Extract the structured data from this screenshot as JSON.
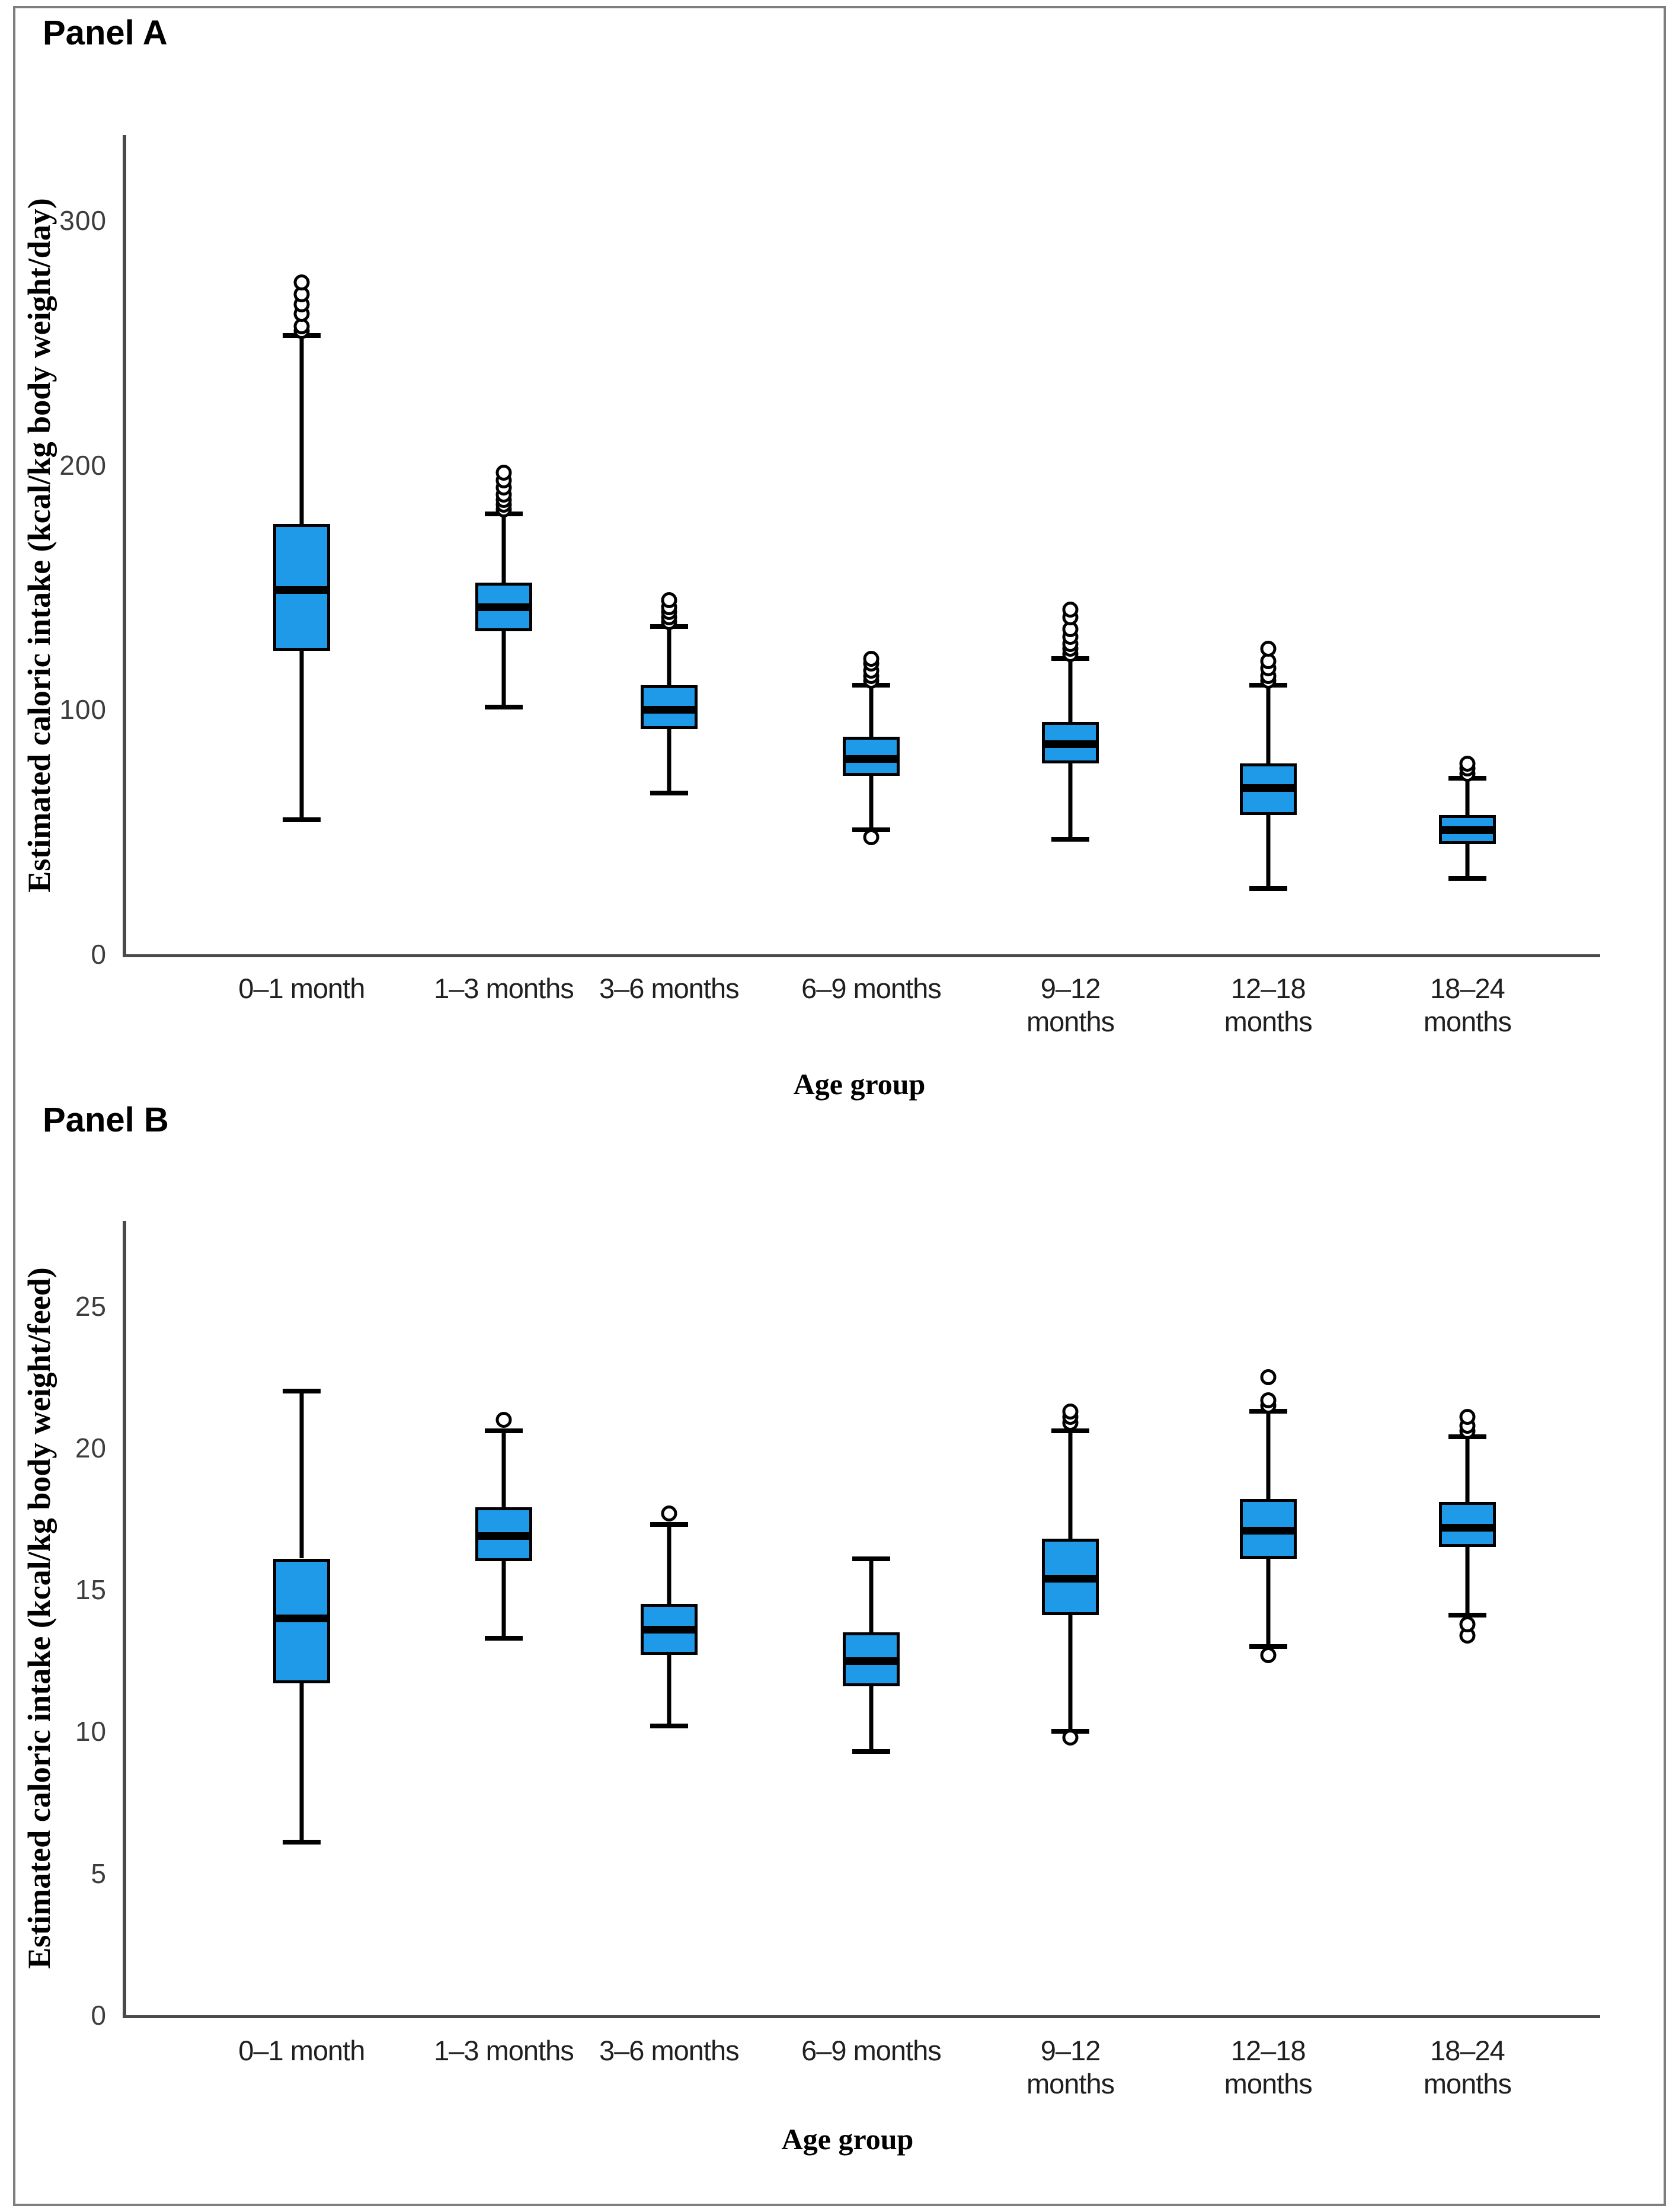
{
  "figure": {
    "panel_a_label": "Panel A",
    "panel_b_label": "Panel B",
    "border_color": "#7e7e7e",
    "box_fill_color": "#1e9ae8",
    "box_line_color": "#000000",
    "axis_color": "#4a4a4a"
  },
  "chart_data": [
    {
      "type": "boxplot",
      "panel": "Panel A",
      "xlabel": "Age group",
      "ylabel": "Estimated caloric intake (kcal/kg body weight/day)",
      "ylim": [
        0,
        335
      ],
      "yticks": [
        0,
        100,
        200,
        300
      ],
      "grid": false,
      "categories": [
        "0–1 month",
        "1–3 months",
        "3–6 months",
        "6–9 months",
        "9–12\nmonths",
        "12–18\nmonths",
        "18–24\nmonths"
      ],
      "series": [
        {
          "category": "0–1 month",
          "whisker_low": 55,
          "q1": 124,
          "median": 149,
          "q3": 176,
          "whisker_high": 253,
          "outliers_low": [],
          "outliers_high": [
            255,
            257,
            262,
            266,
            270,
            275
          ]
        },
        {
          "category": "1–3 months",
          "whisker_low": 101,
          "q1": 132,
          "median": 142,
          "q3": 152,
          "whisker_high": 180,
          "outliers_low": [],
          "outliers_high": [
            182,
            184,
            186,
            188,
            191,
            194,
            197
          ]
        },
        {
          "category": "3–6 months",
          "whisker_low": 66,
          "q1": 92,
          "median": 100,
          "q3": 110,
          "whisker_high": 134,
          "outliers_low": [],
          "outliers_high": [
            136,
            138,
            140,
            142,
            145
          ]
        },
        {
          "category": "6–9 months",
          "whisker_low": 51,
          "q1": 73,
          "median": 80,
          "q3": 89,
          "whisker_high": 110,
          "outliers_low": [
            48
          ],
          "outliers_high": [
            112,
            114,
            116,
            119,
            121
          ]
        },
        {
          "category": "9–12 months",
          "whisker_low": 47,
          "q1": 78,
          "median": 86,
          "q3": 95,
          "whisker_high": 121,
          "outliers_low": [],
          "outliers_high": [
            123,
            125,
            127,
            130,
            133,
            138,
            141
          ]
        },
        {
          "category": "12–18 months",
          "whisker_low": 27,
          "q1": 57,
          "median": 68,
          "q3": 78,
          "whisker_high": 110,
          "outliers_low": [],
          "outliers_high": [
            112,
            114,
            117,
            120,
            125
          ]
        },
        {
          "category": "18–24 months",
          "whisker_low": 31,
          "q1": 45,
          "median": 51,
          "q3": 57,
          "whisker_high": 72,
          "outliers_low": [],
          "outliers_high": [
            74,
            76,
            78
          ]
        }
      ]
    },
    {
      "type": "boxplot",
      "panel": "Panel B",
      "xlabel": "Age group",
      "ylabel": "Estimated caloric intake (kcal/kg body weight/feed)",
      "ylim": [
        0,
        28
      ],
      "yticks": [
        0,
        5,
        10,
        15,
        20,
        25
      ],
      "grid": false,
      "categories": [
        "0–1 month",
        "1–3 months",
        "3–6 months",
        "6–9 months",
        "9–12\nmonths",
        "12–18\nmonths",
        "18–24\nmonths"
      ],
      "series": [
        {
          "category": "0–1 month",
          "whisker_low": 6.1,
          "q1": 11.7,
          "median": 14.0,
          "q3": 16.1,
          "whisker_high": 22.0,
          "outliers_low": [],
          "outliers_high": []
        },
        {
          "category": "1–3 months",
          "whisker_low": 13.3,
          "q1": 16.0,
          "median": 16.9,
          "q3": 17.9,
          "whisker_high": 20.6,
          "outliers_low": [],
          "outliers_high": [
            21.0
          ]
        },
        {
          "category": "3–6 months",
          "whisker_low": 10.2,
          "q1": 12.7,
          "median": 13.6,
          "q3": 14.5,
          "whisker_high": 17.3,
          "outliers_low": [],
          "outliers_high": [
            17.7
          ]
        },
        {
          "category": "6–9 months",
          "whisker_low": 9.3,
          "q1": 11.6,
          "median": 12.5,
          "q3": 13.5,
          "whisker_high": 16.1,
          "outliers_low": [],
          "outliers_high": []
        },
        {
          "category": "9–12 months",
          "whisker_low": 10.0,
          "q1": 14.1,
          "median": 15.4,
          "q3": 16.8,
          "whisker_high": 20.6,
          "outliers_low": [
            9.8
          ],
          "outliers_high": [
            20.9,
            21.1,
            21.3
          ]
        },
        {
          "category": "12–18 months",
          "whisker_low": 13.0,
          "q1": 16.1,
          "median": 17.1,
          "q3": 18.2,
          "whisker_high": 21.3,
          "outliers_low": [
            12.7
          ],
          "outliers_high": [
            21.5,
            21.7,
            22.5
          ]
        },
        {
          "category": "18–24 months",
          "whisker_low": 14.1,
          "q1": 16.5,
          "median": 17.2,
          "q3": 18.1,
          "whisker_high": 20.4,
          "outliers_low": [
            13.4,
            13.8
          ],
          "outliers_high": [
            20.6,
            20.8,
            21.1
          ]
        }
      ]
    }
  ]
}
